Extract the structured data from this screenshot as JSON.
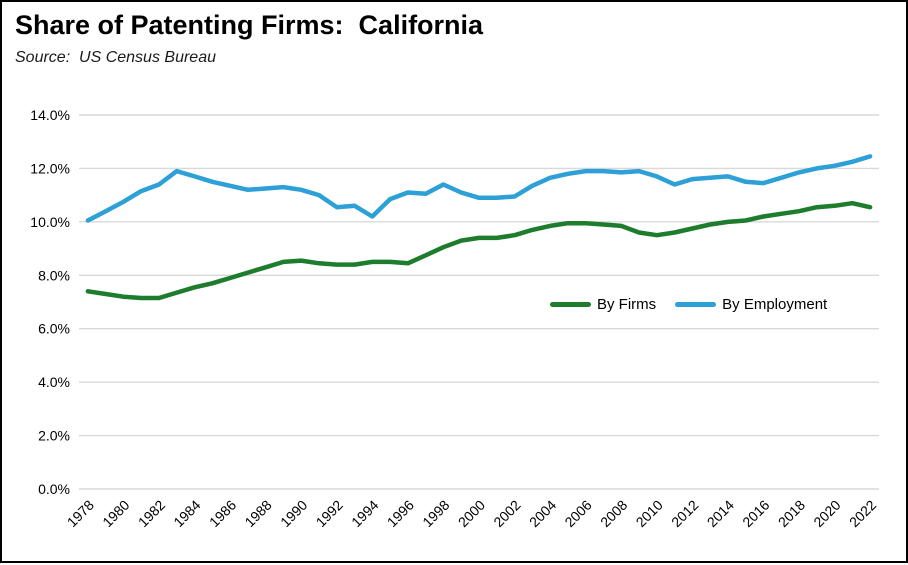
{
  "header": {
    "title": "Share of Patenting Firms:  California",
    "source": "Source:  US Census Bureau"
  },
  "chart_data": {
    "type": "line",
    "title": "Share of Patenting Firms:  California",
    "subtitle": "Source:  US Census Bureau",
    "xlabel": "",
    "ylabel": "",
    "ylim": [
      0,
      14
    ],
    "ytick_step": 2,
    "ytick_labels": [
      "0.0%",
      "2.0%",
      "4.0%",
      "6.0%",
      "8.0%",
      "10.0%",
      "12.0%",
      "14.0%"
    ],
    "xtick_labels": [
      "1978",
      "1980",
      "1982",
      "1984",
      "1986",
      "1988",
      "1990",
      "1992",
      "1994",
      "1996",
      "1998",
      "2000",
      "2002",
      "2004",
      "2006",
      "2008",
      "2010",
      "2012",
      "2014",
      "2016",
      "2018",
      "2020",
      "2022"
    ],
    "x": [
      1978,
      1979,
      1980,
      1981,
      1982,
      1983,
      1984,
      1985,
      1986,
      1987,
      1988,
      1989,
      1990,
      1991,
      1992,
      1993,
      1994,
      1995,
      1996,
      1997,
      1998,
      1999,
      2000,
      2001,
      2002,
      2003,
      2004,
      2005,
      2006,
      2007,
      2008,
      2009,
      2010,
      2011,
      2012,
      2013,
      2014,
      2015,
      2016,
      2017,
      2018,
      2019,
      2020,
      2021,
      2022
    ],
    "series": [
      {
        "name": "By Firms",
        "color": "#1e7d2d",
        "values": [
          7.4,
          7.3,
          7.2,
          7.15,
          7.15,
          7.35,
          7.55,
          7.7,
          7.9,
          8.1,
          8.3,
          8.5,
          8.55,
          8.45,
          8.4,
          8.4,
          8.5,
          8.5,
          8.45,
          8.75,
          9.05,
          9.3,
          9.4,
          9.4,
          9.5,
          9.7,
          9.85,
          9.95,
          9.95,
          9.9,
          9.85,
          9.6,
          9.5,
          9.6,
          9.75,
          9.9,
          10.0,
          10.05,
          10.2,
          10.3,
          10.4,
          10.55,
          10.6,
          10.7,
          10.55
        ]
      },
      {
        "name": "By Employment",
        "color": "#2da0d7",
        "values": [
          10.05,
          10.4,
          10.75,
          11.15,
          11.4,
          11.9,
          11.7,
          11.5,
          11.35,
          11.2,
          11.25,
          11.3,
          11.2,
          11.0,
          10.55,
          10.6,
          10.2,
          10.85,
          11.1,
          11.05,
          11.4,
          11.1,
          10.9,
          10.9,
          10.95,
          11.35,
          11.65,
          11.8,
          11.9,
          11.9,
          11.85,
          11.9,
          11.7,
          11.4,
          11.6,
          11.65,
          11.7,
          11.5,
          11.45,
          11.65,
          11.85,
          12.0,
          12.1,
          12.25,
          12.45
        ]
      }
    ],
    "grid": "horizontal",
    "gridline_color": "#d9d9d9",
    "legend_position": "inside-right-middle",
    "background_color": "#ffffff",
    "border_color": "#000000"
  }
}
